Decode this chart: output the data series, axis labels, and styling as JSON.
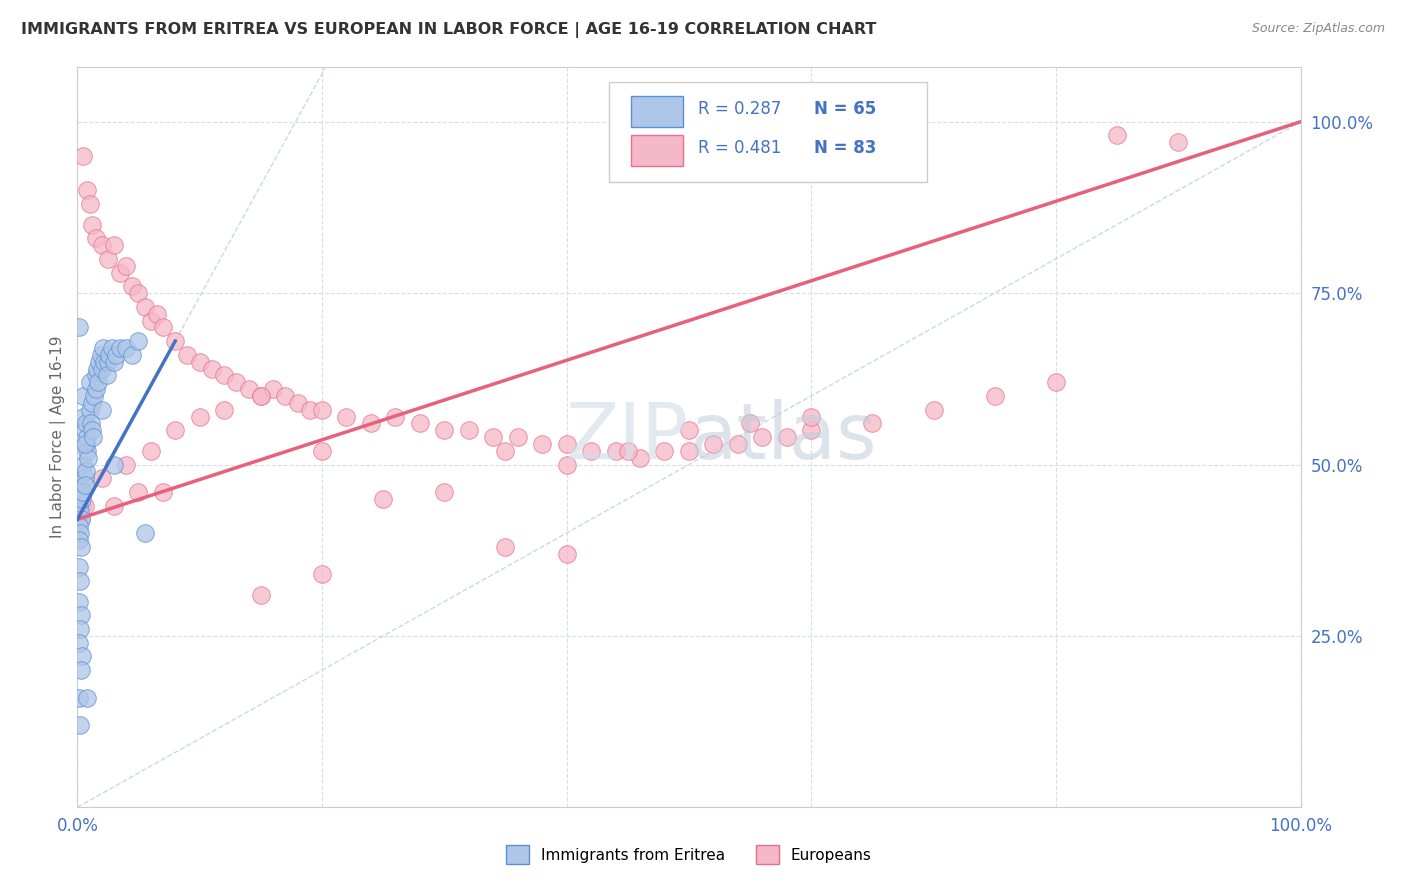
{
  "title": "IMMIGRANTS FROM ERITREA VS EUROPEAN IN LABOR FORCE | AGE 16-19 CORRELATION CHART",
  "source": "Source: ZipAtlas.com",
  "ylabel": "In Labor Force | Age 16-19",
  "xlim": [
    0,
    1.0
  ],
  "ylim": [
    0.0,
    1.08
  ],
  "legend_text1": "R = 0.287   N = 65",
  "legend_text2": "R = 0.481   N = 83",
  "legend_label1": "Immigrants from Eritrea",
  "legend_label2": "Europeans",
  "color_eritrea_fill": "#aec6e8",
  "color_eritrea_edge": "#5b8fd4",
  "color_european_fill": "#f5b8c8",
  "color_european_edge": "#e8708a",
  "color_line_eritrea": "#4472c4",
  "color_line_european": "#e8607a",
  "color_ref_line": "#c8d4e0",
  "background_color": "#ffffff",
  "watermark_color": "#d0dce8",
  "grid_color": "#d8dde8",
  "eritrea_x": [
    0.001,
    0.002,
    0.003,
    0.001,
    0.002,
    0.001,
    0.003,
    0.002,
    0.001,
    0.004,
    0.005,
    0.006,
    0.005,
    0.007,
    0.006,
    0.005,
    0.008,
    0.007,
    0.006,
    0.005,
    0.009,
    0.008,
    0.007,
    0.006,
    0.01,
    0.011,
    0.012,
    0.01,
    0.013,
    0.012,
    0.015,
    0.014,
    0.016,
    0.015,
    0.018,
    0.017,
    0.019,
    0.02,
    0.022,
    0.021,
    0.025,
    0.024,
    0.026,
    0.028,
    0.03,
    0.032,
    0.035,
    0.04,
    0.045,
    0.05,
    0.001,
    0.002,
    0.001,
    0.003,
    0.002,
    0.001,
    0.004,
    0.003,
    0.001,
    0.002,
    0.001,
    0.03,
    0.02,
    0.055,
    0.008
  ],
  "eritrea_y": [
    0.44,
    0.43,
    0.42,
    0.41,
    0.4,
    0.39,
    0.38,
    0.46,
    0.47,
    0.45,
    0.6,
    0.55,
    0.5,
    0.53,
    0.48,
    0.46,
    0.52,
    0.49,
    0.47,
    0.57,
    0.51,
    0.54,
    0.56,
    0.53,
    0.58,
    0.56,
    0.55,
    0.62,
    0.54,
    0.59,
    0.63,
    0.6,
    0.64,
    0.61,
    0.65,
    0.62,
    0.66,
    0.64,
    0.65,
    0.67,
    0.65,
    0.63,
    0.66,
    0.67,
    0.65,
    0.66,
    0.67,
    0.67,
    0.66,
    0.68,
    0.35,
    0.33,
    0.3,
    0.28,
    0.26,
    0.24,
    0.22,
    0.2,
    0.16,
    0.12,
    0.7,
    0.5,
    0.58,
    0.4,
    0.16
  ],
  "european_x": [
    0.005,
    0.008,
    0.01,
    0.012,
    0.015,
    0.02,
    0.025,
    0.03,
    0.035,
    0.04,
    0.045,
    0.05,
    0.055,
    0.06,
    0.065,
    0.07,
    0.08,
    0.09,
    0.1,
    0.11,
    0.12,
    0.13,
    0.14,
    0.15,
    0.16,
    0.17,
    0.18,
    0.19,
    0.2,
    0.22,
    0.24,
    0.26,
    0.28,
    0.3,
    0.32,
    0.34,
    0.36,
    0.38,
    0.4,
    0.42,
    0.44,
    0.46,
    0.48,
    0.5,
    0.52,
    0.54,
    0.56,
    0.58,
    0.6,
    0.65,
    0.7,
    0.75,
    0.8,
    0.02,
    0.04,
    0.06,
    0.08,
    0.1,
    0.12,
    0.15,
    0.03,
    0.07,
    0.05,
    0.2,
    0.35,
    0.001,
    0.003,
    0.002,
    0.004,
    0.006,
    0.25,
    0.3,
    0.4,
    0.45,
    0.5,
    0.35,
    0.4,
    0.2,
    0.15,
    0.9,
    0.55,
    0.6,
    0.85
  ],
  "european_y": [
    0.95,
    0.9,
    0.88,
    0.85,
    0.83,
    0.82,
    0.8,
    0.82,
    0.78,
    0.79,
    0.76,
    0.75,
    0.73,
    0.71,
    0.72,
    0.7,
    0.68,
    0.66,
    0.65,
    0.64,
    0.63,
    0.62,
    0.61,
    0.6,
    0.61,
    0.6,
    0.59,
    0.58,
    0.58,
    0.57,
    0.56,
    0.57,
    0.56,
    0.55,
    0.55,
    0.54,
    0.54,
    0.53,
    0.53,
    0.52,
    0.52,
    0.51,
    0.52,
    0.52,
    0.53,
    0.53,
    0.54,
    0.54,
    0.55,
    0.56,
    0.58,
    0.6,
    0.62,
    0.48,
    0.5,
    0.52,
    0.55,
    0.57,
    0.58,
    0.6,
    0.44,
    0.46,
    0.46,
    0.52,
    0.52,
    0.43,
    0.42,
    0.43,
    0.44,
    0.44,
    0.45,
    0.46,
    0.5,
    0.52,
    0.55,
    0.38,
    0.37,
    0.34,
    0.31,
    0.97,
    0.56,
    0.57,
    0.98
  ],
  "european_line_x0": 0.0,
  "european_line_y0": 0.42,
  "european_line_x1": 1.0,
  "european_line_y1": 1.0,
  "eritrea_line_x0": 0.0,
  "eritrea_line_y0": 0.42,
  "eritrea_line_x1": 0.08,
  "eritrea_line_y1": 0.68
}
